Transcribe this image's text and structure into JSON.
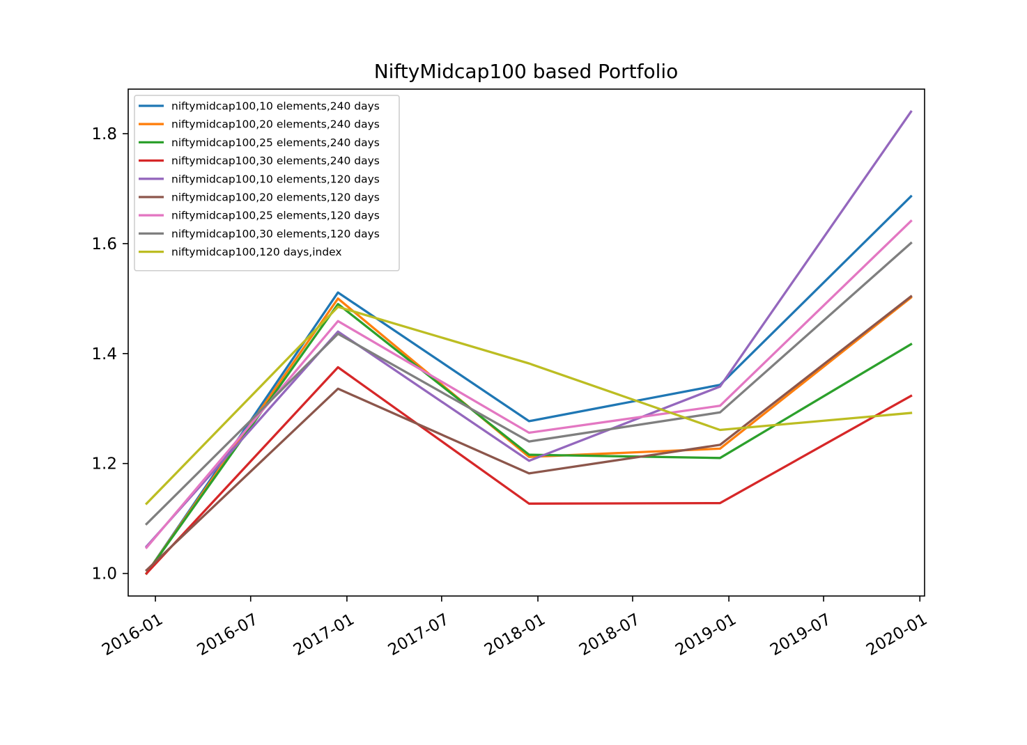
{
  "chart_data": {
    "type": "line",
    "title": "NiftyMidcap100 based Portfolio",
    "xlabel": "",
    "ylabel": "",
    "x": [
      "2015-12-15",
      "2016-12-15",
      "2017-12-15",
      "2018-12-15",
      "2019-12-15"
    ],
    "xlim": [
      "2015-11-10",
      "2020-01-10"
    ],
    "ylim": [
      0.959,
      1.881
    ],
    "x_ticks": [
      "2016-01",
      "2016-07",
      "2017-01",
      "2017-07",
      "2018-01",
      "2018-07",
      "2019-01",
      "2019-07",
      "2020-01"
    ],
    "y_ticks": [
      "1.0",
      "1.2",
      "1.4",
      "1.6",
      "1.8"
    ],
    "legend_position": "upper-left",
    "grid": false,
    "series": [
      {
        "name": "niftymidcap100,10 elements,240 days",
        "color": "#1f77b4",
        "values": [
          1.0,
          1.511,
          1.277,
          1.343,
          1.686
        ]
      },
      {
        "name": "niftymidcap100,20 elements,240 days",
        "color": "#ff7f0e",
        "values": [
          1.0,
          1.5,
          1.212,
          1.227,
          1.502
        ]
      },
      {
        "name": "niftymidcap100,25 elements,240 days",
        "color": "#2ca02c",
        "values": [
          1.0,
          1.49,
          1.216,
          1.21,
          1.417
        ]
      },
      {
        "name": "niftymidcap100,30 elements,240 days",
        "color": "#d62728",
        "values": [
          1.0,
          1.375,
          1.127,
          1.128,
          1.323
        ]
      },
      {
        "name": "niftymidcap100,10 elements,120 days",
        "color": "#9467bd",
        "values": [
          1.049,
          1.44,
          1.205,
          1.34,
          1.84
        ]
      },
      {
        "name": "niftymidcap100,20 elements,120 days",
        "color": "#8c564b",
        "values": [
          1.006,
          1.336,
          1.182,
          1.234,
          1.504
        ]
      },
      {
        "name": "niftymidcap100,25 elements,120 days",
        "color": "#e377c2",
        "values": [
          1.047,
          1.459,
          1.256,
          1.305,
          1.641
        ]
      },
      {
        "name": "niftymidcap100,30 elements,120 days",
        "color": "#7f7f7f",
        "values": [
          1.09,
          1.436,
          1.24,
          1.293,
          1.601
        ]
      },
      {
        "name": "niftymidcap100,120 days,index",
        "color": "#bcbd22",
        "values": [
          1.127,
          1.485,
          1.382,
          1.261,
          1.292
        ]
      }
    ]
  }
}
